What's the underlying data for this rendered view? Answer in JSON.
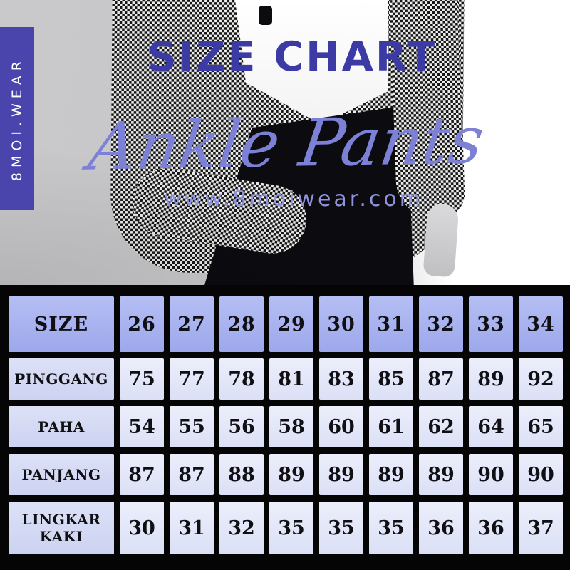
{
  "brand": {
    "ribbon": "8MOI.WEAR",
    "website": "www.8moiwear.com"
  },
  "hero": {
    "title": "SIZE CHART",
    "subtitle": "Ankle Pants"
  },
  "colors": {
    "accent_blue": "#3c3ba6",
    "script_purple": "#7c81d6",
    "url_lavender": "#8e93db",
    "ribbon_indigo": "#4a44ad",
    "header_cell": "#a9b3ef",
    "label_cell": "#d4daf4",
    "data_cell": "#e4e7f9",
    "table_background": "#050505"
  },
  "chart_data": {
    "type": "table",
    "title": "SIZE CHART",
    "subtitle": "Ankle Pants",
    "corner_label": "SIZE",
    "sizes": [
      "26",
      "27",
      "28",
      "29",
      "30",
      "31",
      "32",
      "33",
      "34"
    ],
    "rows": [
      {
        "label": "PINGGANG",
        "values": [
          "75",
          "77",
          "78",
          "81",
          "83",
          "85",
          "87",
          "89",
          "92"
        ]
      },
      {
        "label": "PAHA",
        "values": [
          "54",
          "55",
          "56",
          "58",
          "60",
          "61",
          "62",
          "64",
          "65"
        ]
      },
      {
        "label": "PANJANG",
        "values": [
          "87",
          "87",
          "88",
          "89",
          "89",
          "89",
          "89",
          "90",
          "90"
        ]
      },
      {
        "label": "LINGKAR KAKI",
        "values": [
          "30",
          "31",
          "32",
          "35",
          "35",
          "35",
          "36",
          "36",
          "37"
        ]
      }
    ]
  }
}
